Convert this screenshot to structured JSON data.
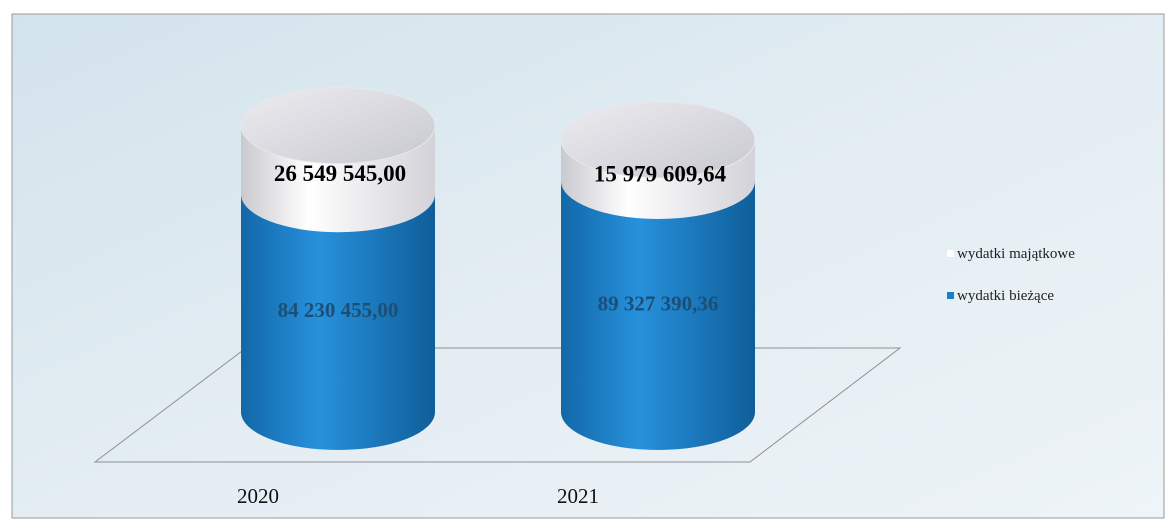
{
  "chart_data": {
    "type": "bar",
    "subtype": "stacked-3d-cylinder",
    "categories": [
      "2020",
      "2021"
    ],
    "series": [
      {
        "name": "wydatki bieżące",
        "color": "#1a7fc8",
        "values": [
          84230455.0,
          89327390.36
        ],
        "labels": [
          "84 230 455,00",
          "89 327 390,36"
        ]
      },
      {
        "name": "wydatki majątkowe",
        "color": "#ffffff",
        "values": [
          26549545.0,
          15979609.64
        ],
        "labels": [
          "26 549 545,00",
          "15 979 609,64"
        ]
      }
    ],
    "legend": {
      "position": "right",
      "entries": [
        "wydatki majątkowe",
        "wydatki bieżące"
      ]
    },
    "grid": false
  }
}
